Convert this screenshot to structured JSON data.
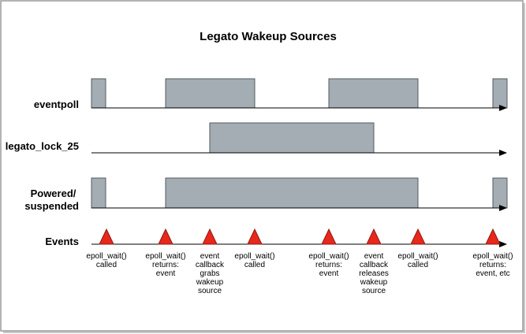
{
  "title": "Legato Wakeup Sources",
  "colors": {
    "border": "#9a9a9a",
    "shadow": "#c8c8c8",
    "block_fill": "#a3adb3",
    "block_stroke": "#555a5e",
    "marker_fill": "#e8271d",
    "marker_stroke": "#8b1a12",
    "axis": "#000000"
  },
  "rows": [
    {
      "id": "eventpoll",
      "label_lines": [
        "eventpoll"
      ]
    },
    {
      "id": "legato-lock-25",
      "label_lines": [
        "legato_lock_25"
      ]
    },
    {
      "id": "powered-suspended",
      "label_lines": [
        "Powered/",
        "suspended"
      ]
    },
    {
      "id": "events",
      "label_lines": [
        "Events"
      ]
    }
  ],
  "events": [
    {
      "label_lines": [
        "epoll_wait()",
        "called"
      ]
    },
    {
      "label_lines": [
        "epoll_wait()",
        "returns:",
        "event"
      ]
    },
    {
      "label_lines": [
        "event",
        "callback",
        "grabs",
        "wakeup",
        "source"
      ]
    },
    {
      "label_lines": [
        "epoll_wait()",
        "called"
      ]
    },
    {
      "label_lines": [
        "epoll_wait()",
        "returns:",
        "event"
      ]
    },
    {
      "label_lines": [
        "event",
        "callback",
        "releases",
        "wakeup",
        "source"
      ]
    },
    {
      "label_lines": [
        "epoll_wait()",
        "called"
      ]
    },
    {
      "label_lines": [
        "epoll_wait()",
        "returns:",
        "event, etc"
      ]
    }
  ]
}
